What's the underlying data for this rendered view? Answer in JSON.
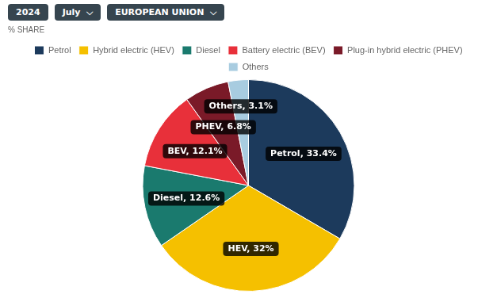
{
  "chart_data": {
    "type": "pie",
    "annotations": [
      "2024",
      "July  ⌵",
      "EUROPEAN UNION  ⌵"
    ],
    "subtitle": "% SHARE",
    "categories": [
      "Petrol",
      "Hybrid electric (HEV)",
      "Diesel",
      "Battery electric (BEV)",
      "Plug-in hybrid electric (PHEV)",
      "Others"
    ],
    "values": [
      33.4,
      32.0,
      12.6,
      12.1,
      6.8,
      3.1
    ],
    "colors": [
      "#1c3a5c",
      "#f5c000",
      "#1a7a6e",
      "#e8303a",
      "#7a1a28",
      "#a8cce0"
    ],
    "value_labels": [
      "Petrol, 33.4%",
      "HEV, 32%",
      "Diesel, 12.6%",
      "BEV, 12.1%",
      "PHEV, 6.8%",
      "Others, 3.1%"
    ],
    "data_labels": true,
    "legend": "top"
  }
}
